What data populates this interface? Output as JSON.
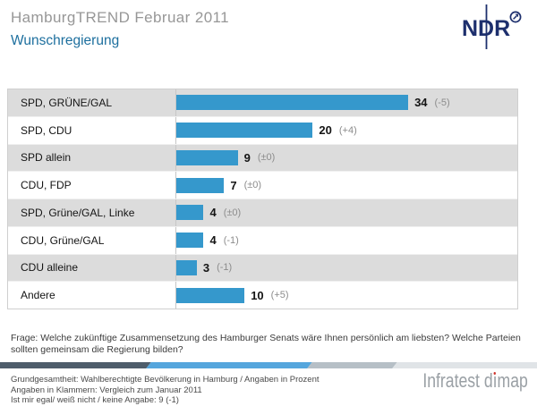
{
  "header": {
    "supertitle": "HamburgTREND Februar 2011",
    "title": "Wunschregierung",
    "logo_text": "NDR"
  },
  "chart_data": {
    "type": "bar",
    "orientation": "horizontal",
    "title": "Wunschregierung",
    "categories": [
      "SPD, GRÜNE/GAL",
      "SPD, CDU",
      "SPD allein",
      "CDU, FDP",
      "SPD, Grüne/GAL, Linke",
      "CDU, Grüne/GAL",
      "CDU alleine",
      "Andere"
    ],
    "values": [
      34,
      20,
      9,
      7,
      4,
      4,
      3,
      10
    ],
    "change_labels": [
      "(-5)",
      "(+4)",
      "(±0)",
      "(±0)",
      "(±0)",
      "(-1)",
      "(-1)",
      "(+5)"
    ],
    "xlim": [
      0,
      50
    ],
    "unit": "Prozent",
    "bar_color": "#3598cc",
    "row_alt_color": "#dcdcdc",
    "legend": "none",
    "grid": false
  },
  "question": "Frage: Welche zukünftige Zusammensetzung des Hamburger Senats wäre Ihnen persönlich am liebsten? Welche Parteien sollten gemeinsam die Regierung bilden?",
  "footer": {
    "notes": [
      "Grundgesamtheit: Wahlberechtigte Bevölkerung in Hamburg / Angaben in Prozent",
      "Angaben in Klammern: Vergleich zum Januar 2011",
      "Ist mir egal/ weiß nicht / keine Angabe: 9 (-1)"
    ],
    "brand": {
      "part1": "Infratest d",
      "dotless_i": "ı",
      "part2": "map",
      "dot_color": "#d0342c"
    },
    "stripe_colors": [
      "#4e5d6b",
      "#55a6dd",
      "#b6bfc6",
      "#e0e4e7"
    ]
  },
  "colors": {
    "ndr_navy": "#1d2f6d",
    "title_gray": "#979797",
    "accent_blue": "#1d6f9e",
    "bar_blue": "#3598cc"
  }
}
